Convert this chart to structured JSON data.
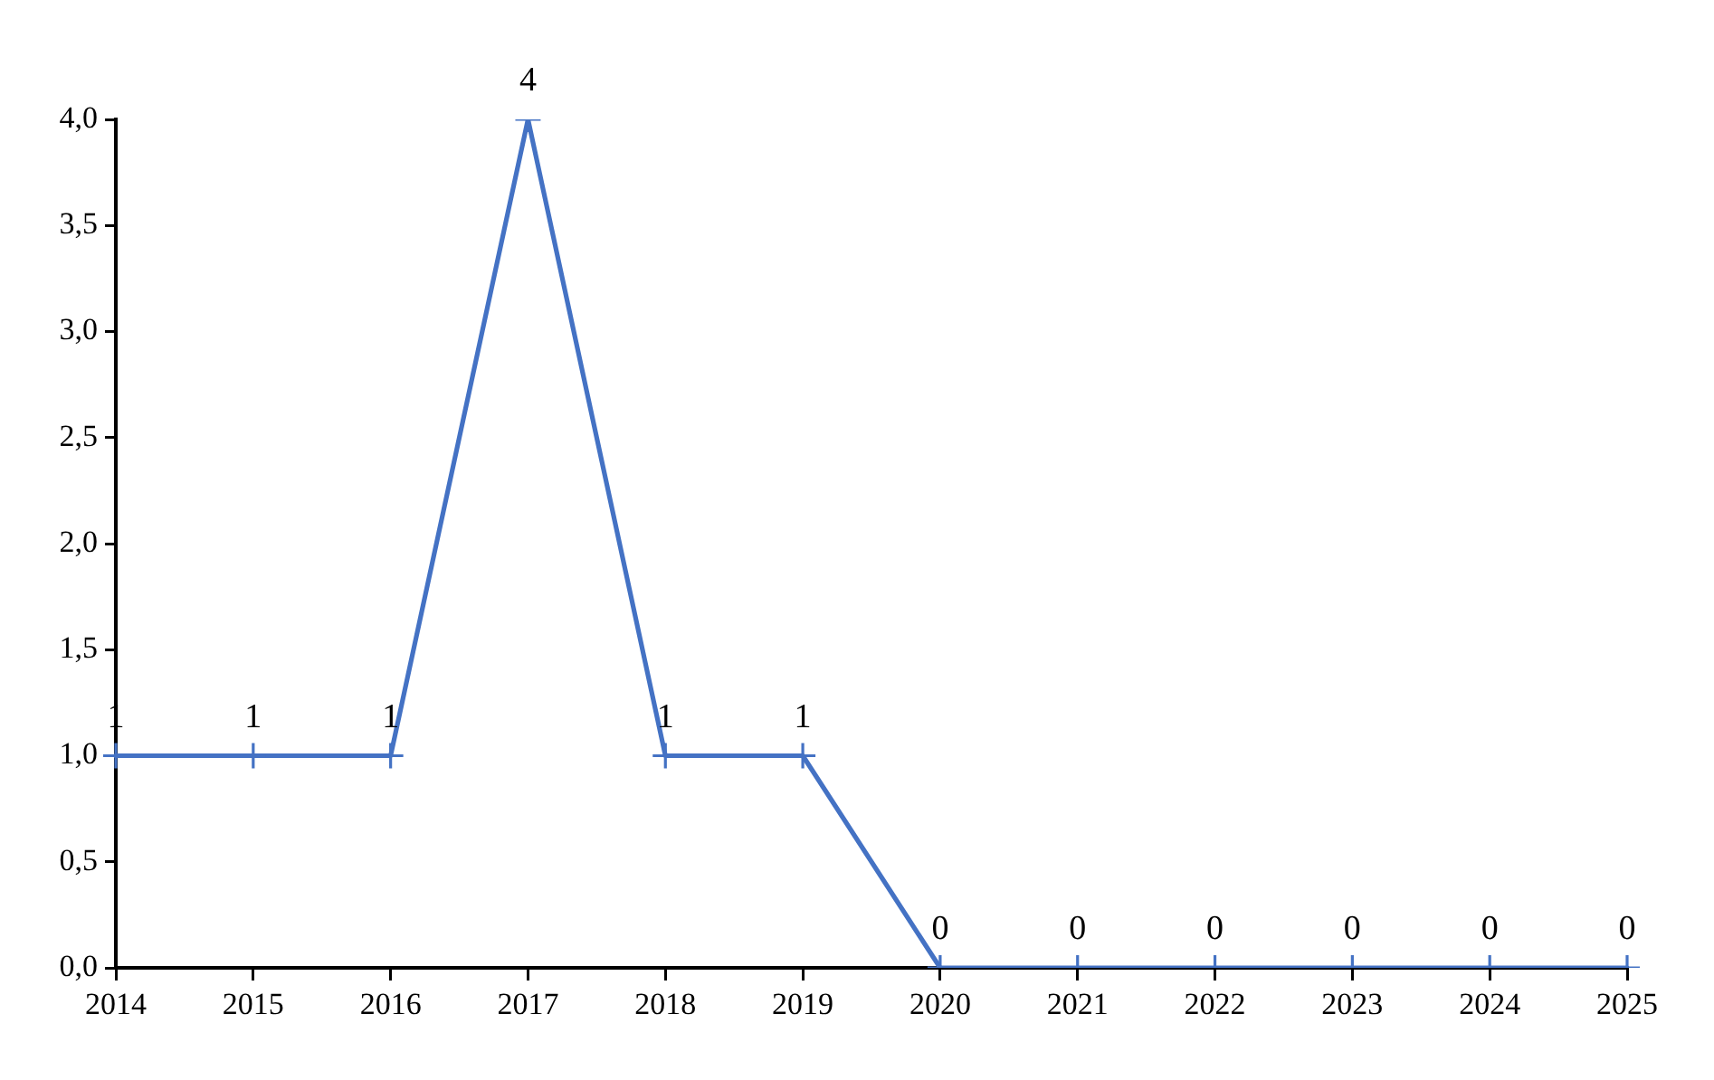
{
  "chart_data": {
    "type": "line",
    "categories": [
      "2014",
      "2015",
      "2016",
      "2017",
      "2018",
      "2019",
      "2020",
      "2021",
      "2022",
      "2023",
      "2024",
      "2025"
    ],
    "values": [
      1,
      1,
      1,
      4,
      1,
      1,
      0,
      0,
      0,
      0,
      0,
      0
    ],
    "color": "#4472c4",
    "ylim": [
      0,
      4
    ],
    "yticks": [
      {
        "value": 0,
        "label": "0,0"
      },
      {
        "value": 0.5,
        "label": "0,5"
      },
      {
        "value": 1,
        "label": "1,0"
      },
      {
        "value": 1.5,
        "label": "1,5"
      },
      {
        "value": 2,
        "label": "2,0"
      },
      {
        "value": 2.5,
        "label": "2,5"
      },
      {
        "value": 3,
        "label": "3,0"
      },
      {
        "value": 3.5,
        "label": "3,5"
      },
      {
        "value": 4,
        "label": "4,0"
      }
    ],
    "grid": false,
    "marker": "cross",
    "line_style": "solid",
    "data_labels": true
  }
}
